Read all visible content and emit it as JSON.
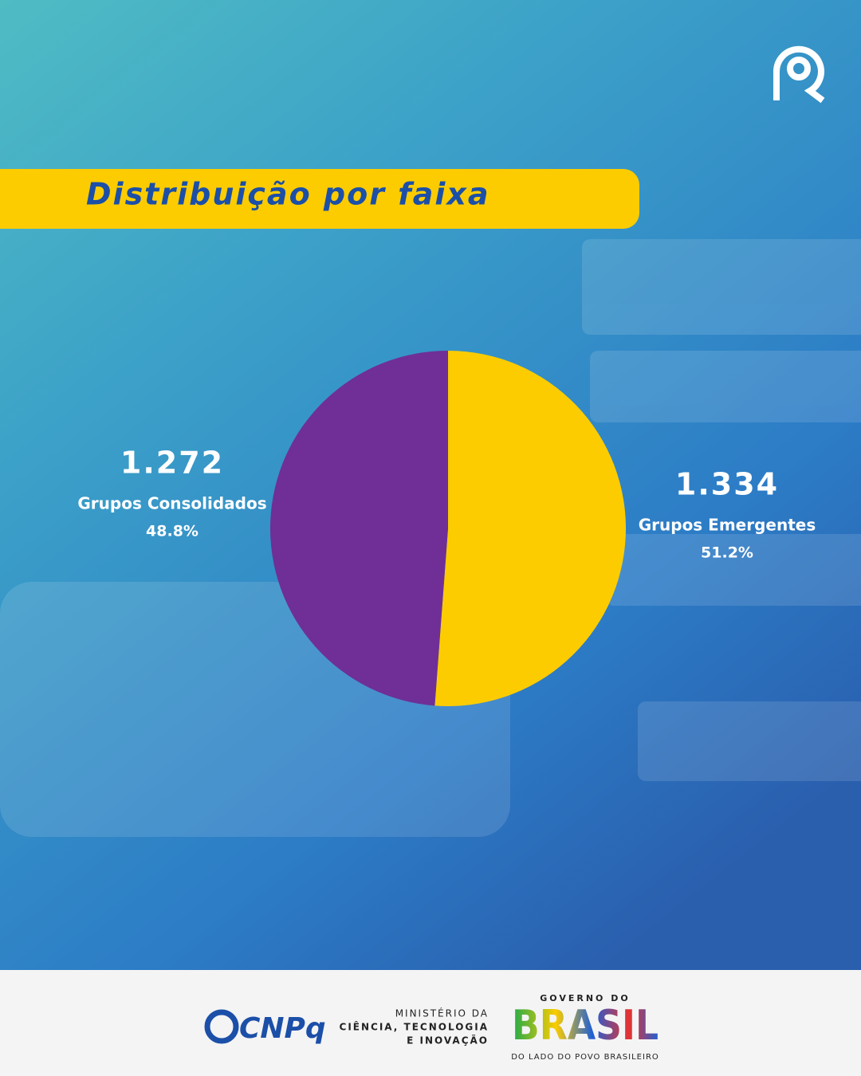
{
  "chart_data": {
    "type": "pie",
    "title": "Distribuição por faixa",
    "categories": [
      "Grupos Emergentes",
      "Grupos Consolidados"
    ],
    "values": [
      1334,
      1272
    ],
    "value_labels": [
      "1.334",
      "1.272"
    ],
    "percent_labels": [
      "51.2%",
      "48.8%"
    ],
    "colors": [
      "#fccc00",
      "#6f2f96"
    ]
  },
  "footer": {
    "cnpq": "CNPq",
    "ministry": [
      "MINISTÉRIO DA",
      "CIÊNCIA, TECNOLOGIA",
      "E INOVAÇÃO"
    ],
    "government": {
      "top": "GOVERNO DO",
      "name": "BRASIL",
      "slogan": "DO LADO DO POVO BRASILEIRO"
    }
  }
}
